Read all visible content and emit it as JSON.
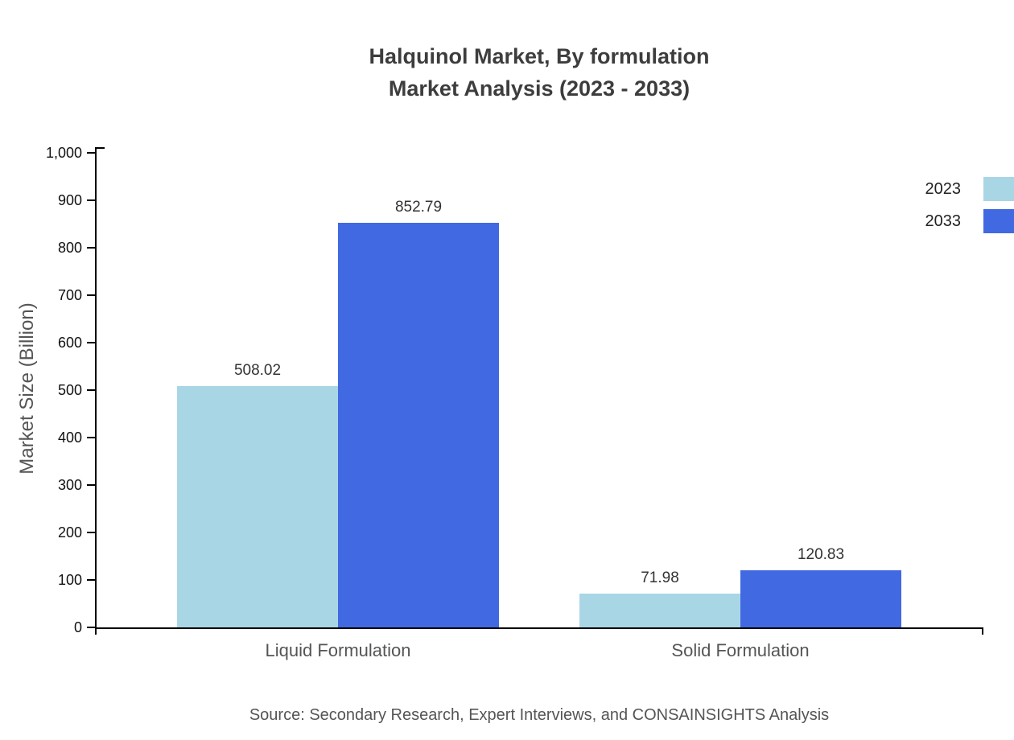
{
  "title": {
    "line1": "Halquinol Market, By formulation",
    "line2": "Market Analysis (2023 - 2033)"
  },
  "y_axis": {
    "label": "Market Size (Billion)"
  },
  "legend": {
    "items": [
      {
        "label": "2023",
        "color": "#a9d6e5"
      },
      {
        "label": "2033",
        "color": "#4169e1"
      }
    ]
  },
  "source": "Source: Secondary Research, Expert Interviews, and CONSAINSIGHTS Analysis",
  "chart_data": {
    "type": "bar",
    "title": "Halquinol Market, By formulation — Market Analysis (2023 - 2033)",
    "categories": [
      "Liquid Formulation",
      "Solid Formulation"
    ],
    "series": [
      {
        "name": "2023",
        "color": "#a9d6e5",
        "values": [
          508.02,
          71.98
        ],
        "labels": [
          "508.02",
          "71.98"
        ]
      },
      {
        "name": "2033",
        "color": "#4169e1",
        "values": [
          852.79,
          120.83
        ],
        "labels": [
          "852.79",
          "120.83"
        ]
      }
    ],
    "xlabel": "",
    "ylabel": "Market Size (Billion)",
    "ylim": [
      0,
      1000
    ],
    "ytick_step": 100,
    "yticks": [
      "0",
      "100",
      "200",
      "300",
      "400",
      "500",
      "600",
      "700",
      "800",
      "900",
      "1,000"
    ],
    "grid": false,
    "legend_position": "top-right"
  }
}
